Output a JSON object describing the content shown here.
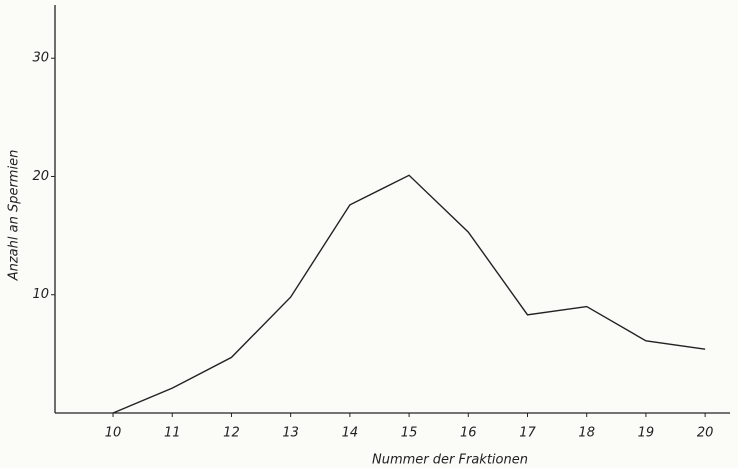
{
  "chart_data": {
    "type": "line",
    "x_label": "Nummer der Fraktionen",
    "y_label": "Anzahl an Spermien",
    "x": [
      10,
      11,
      12,
      13,
      14,
      15,
      16,
      17,
      18,
      19,
      20
    ],
    "series": [
      {
        "color": "#222222",
        "values": [
          0,
          2.1,
          4.7,
          9.8,
          17.6,
          20.1,
          15.3,
          8.3,
          9.0,
          6.1,
          5.4
        ]
      }
    ],
    "xlim": [
      9.02,
      20.42
    ],
    "ylim": [
      0,
      34.5
    ],
    "xticks": [
      10,
      11,
      12,
      13,
      14,
      15,
      16,
      17,
      18,
      19,
      20
    ],
    "yticks": [
      10,
      20,
      30
    ],
    "grid": false
  }
}
